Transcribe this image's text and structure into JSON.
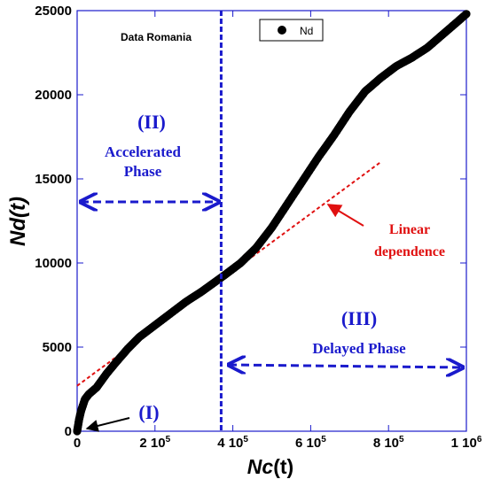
{
  "chart_data": {
    "type": "scatter",
    "xlabel_main": "Nc",
    "xlabel_suffix": "(t)",
    "ylabel_main": "Nd",
    "ylabel_suffix": "(t)",
    "xlim": [
      0,
      1000000
    ],
    "ylim": [
      0,
      25000
    ],
    "x_ticks": [
      {
        "value": 0,
        "label": "0",
        "sup": ""
      },
      {
        "value": 200000,
        "label": "2 10",
        "sup": "5"
      },
      {
        "value": 400000,
        "label": "4 10",
        "sup": "5"
      },
      {
        "value": 600000,
        "label": "6 10",
        "sup": "5"
      },
      {
        "value": 800000,
        "label": "8 10",
        "sup": "5"
      },
      {
        "value": 1000000,
        "label": "1 10",
        "sup": "6"
      }
    ],
    "y_ticks": [
      {
        "value": 0,
        "label": "0"
      },
      {
        "value": 5000,
        "label": "5000"
      },
      {
        "value": 10000,
        "label": "10000"
      },
      {
        "value": 15000,
        "label": "15000"
      },
      {
        "value": 20000,
        "label": "20000"
      },
      {
        "value": 25000,
        "label": "25000"
      }
    ],
    "legend": {
      "position": "top-center",
      "label": "Nd"
    },
    "series": [
      {
        "name": "Nd",
        "color": "#000000",
        "x": [
          0,
          5000,
          10000,
          20000,
          30000,
          50000,
          75000,
          100000,
          130000,
          160000,
          200000,
          240000,
          280000,
          320000,
          350000,
          380000,
          420000,
          460000,
          500000,
          540000,
          580000,
          620000,
          660000,
          700000,
          740000,
          780000,
          820000,
          860000,
          900000,
          940000,
          970000,
          1000000
        ],
        "y": [
          0,
          700,
          1200,
          1900,
          2200,
          2600,
          3400,
          4100,
          4900,
          5600,
          6300,
          7000,
          7700,
          8300,
          8800,
          9300,
          10000,
          10900,
          12100,
          13500,
          14900,
          16300,
          17600,
          19000,
          20200,
          21000,
          21700,
          22200,
          22800,
          23600,
          24200,
          24800
        ]
      }
    ],
    "fit_line": {
      "name": "Linear dependence",
      "color": "#e01010",
      "x": [
        0,
        780000
      ],
      "y": [
        2700,
        16000
      ]
    },
    "separator_x": 370000,
    "annotations": {
      "data_source": "Data Romania",
      "phase1": "(I)",
      "phase2_label": "(II)",
      "phase2_name_1": "Accelerated",
      "phase2_name_2": "Phase",
      "phase3_label": "(III)",
      "phase3_name": "Delayed Phase",
      "linear_1": "Linear",
      "linear_2": "dependence"
    },
    "colors": {
      "blue": "#1a1acc",
      "red": "#e01010",
      "black": "#000000"
    }
  }
}
